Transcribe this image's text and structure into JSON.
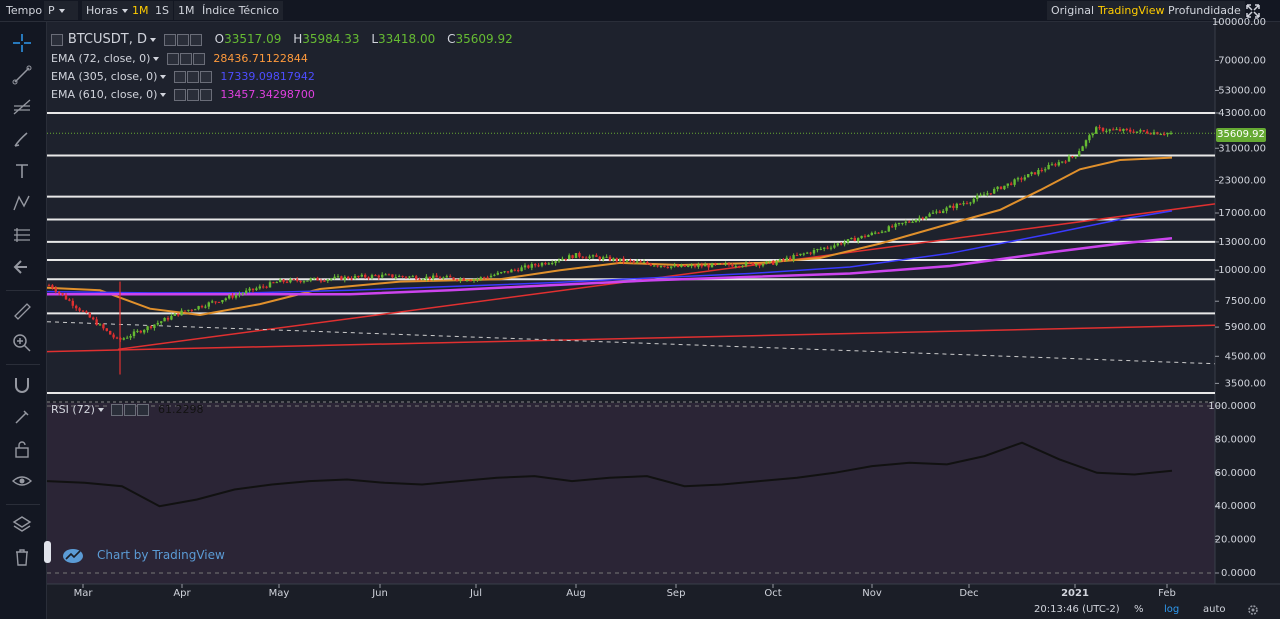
{
  "toolbar": {
    "time_label": "Tempo",
    "interval_value": "P",
    "hours_label": "Horas",
    "intervals": [
      "1M",
      "1S",
      "1M"
    ],
    "indicators_label": "Índice Técnico",
    "view_modes": [
      "Original",
      "TradingView",
      "Profundidade"
    ],
    "active_view": "TradingView"
  },
  "legend": {
    "symbol": "BTCUSDT, D",
    "open_label": "O",
    "open": "33517.09",
    "high_label": "H",
    "high": "35984.33",
    "low_label": "L",
    "low": "33418.00",
    "close_label": "C",
    "close": "35609.92",
    "indicators": [
      {
        "label": "EMA (72, close, 0)",
        "value": "28436.71122844",
        "color": "#ff9a3c"
      },
      {
        "label": "EMA (305, close, 0)",
        "value": "17339.09817942",
        "color": "#4d4dff"
      },
      {
        "label": "EMA (610, close, 0)",
        "value": "13457.34298700",
        "color": "#e040e0"
      }
    ]
  },
  "rsi_legend": {
    "label": "RSI (72)",
    "value": "61.2298"
  },
  "price_tag": "35609.92",
  "branding": "Chart by TradingView",
  "status": {
    "clock": "20:13:46 (UTC-2)",
    "percent": "%",
    "log": "log",
    "auto": "auto"
  },
  "colors": {
    "up": "#66bb33",
    "down": "#e03030",
    "ema72": "#e0902c",
    "ema305": "#3a3aff",
    "ema610": "#cc44ee",
    "trend": "#e03030",
    "pricetag": "#66aa33"
  },
  "chart_data": [
    {
      "type": "candlestick",
      "title": "BTCUSDT, D",
      "scale": "log",
      "ylim": [
        3000,
        100000
      ],
      "x_ticks": [
        "Mar",
        "Apr",
        "May",
        "Jun",
        "Jul",
        "Aug",
        "Sep",
        "Oct",
        "Nov",
        "Dec",
        "2021",
        "Feb"
      ],
      "y_ticks": [
        "100000.00",
        "70000.00",
        "53000.00",
        "43000.00",
        "31000.00",
        "23000.00",
        "17000.00",
        "13000.00",
        "10000.00",
        "7500.00",
        "5900.00",
        "4500.00",
        "3500.00"
      ],
      "close_series": [
        {
          "month": "Mar",
          "close": 8700
        },
        {
          "month": "Mid-Mar",
          "close": 5200
        },
        {
          "month": "Apr",
          "close": 6800
        },
        {
          "month": "May",
          "close": 9000
        },
        {
          "month": "Jun",
          "close": 9500
        },
        {
          "month": "Jul",
          "close": 9200
        },
        {
          "month": "Aug",
          "close": 11500
        },
        {
          "month": "Sep",
          "close": 10300
        },
        {
          "month": "Oct",
          "close": 10700
        },
        {
          "month": "Nov",
          "close": 14000
        },
        {
          "month": "Dec",
          "close": 19000
        },
        {
          "month": "2021",
          "close": 29000
        },
        {
          "month": "Mid-Jan",
          "close": 37000
        },
        {
          "month": "Feb",
          "close": 35609.92
        }
      ],
      "horizontal_levels": [
        43000,
        29000,
        19800,
        16000,
        13000,
        11000,
        9200,
        6700,
        3200
      ],
      "ema": [
        {
          "name": "EMA (72, close, 0)",
          "last": 28436.71
        },
        {
          "name": "EMA (305, close, 0)",
          "last": 17339.1
        },
        {
          "name": "EMA (610, close, 0)",
          "last": 13457.34
        }
      ]
    },
    {
      "type": "line",
      "title": "RSI (72)",
      "ylim": [
        0,
        100
      ],
      "y_ticks": [
        "100.0000",
        "80.0000",
        "60.0000",
        "40.0000",
        "20.0000",
        "0.0000"
      ],
      "values": [
        55,
        54,
        52,
        40,
        44,
        50,
        53,
        55,
        56,
        54,
        53,
        55,
        57,
        58,
        55,
        57,
        58,
        52,
        53,
        55,
        57,
        60,
        64,
        66,
        65,
        70,
        78,
        68,
        60,
        59,
        61.23
      ]
    }
  ]
}
